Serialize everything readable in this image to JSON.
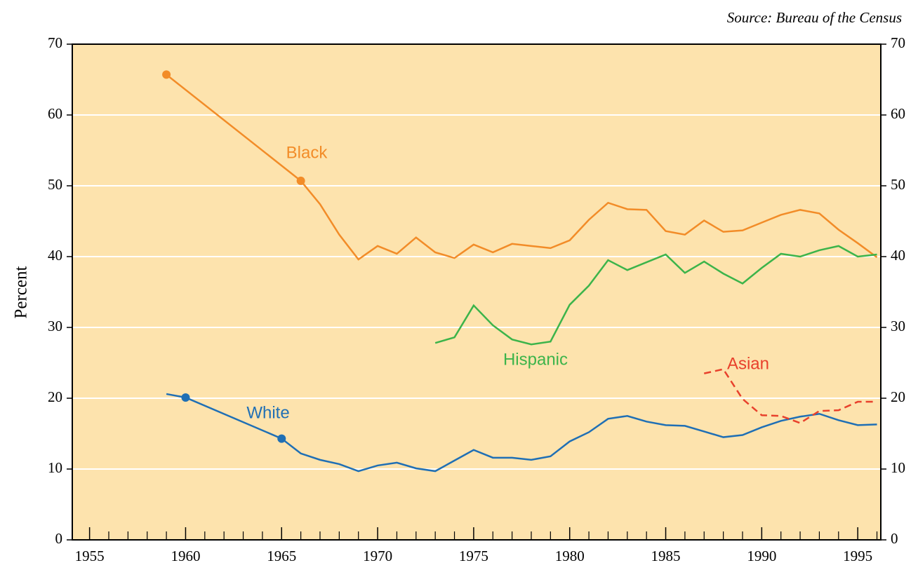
{
  "chart_data": {
    "type": "line",
    "source": "Source: Bureau of the Census",
    "ylabel": "Percent",
    "xlim": [
      1954.1,
      1996.2
    ],
    "xticks": [
      1955,
      1960,
      1965,
      1970,
      1975,
      1980,
      1985,
      1990,
      1995
    ],
    "ylim": [
      0,
      70
    ],
    "yticks": [
      0,
      10,
      20,
      30,
      40,
      50,
      60,
      70
    ],
    "grid": true,
    "background": "#fde3ad",
    "series": [
      {
        "name": "Black",
        "color": "#f28c28",
        "dash": false,
        "markers": [
          1959,
          1966
        ],
        "x": [
          1959,
          1966,
          1967,
          1968,
          1969,
          1970,
          1971,
          1972,
          1973,
          1974,
          1975,
          1976,
          1977,
          1978,
          1979,
          1980,
          1981,
          1982,
          1983,
          1984,
          1985,
          1986,
          1987,
          1988,
          1989,
          1990,
          1991,
          1992,
          1993,
          1994,
          1995,
          1996
        ],
        "values": [
          65.7,
          50.7,
          47.4,
          43.1,
          39.6,
          41.5,
          40.4,
          42.7,
          40.6,
          39.8,
          41.7,
          40.6,
          41.8,
          41.5,
          41.2,
          42.3,
          45.2,
          47.6,
          46.7,
          46.6,
          43.6,
          43.1,
          45.1,
          43.5,
          43.7,
          44.8,
          45.9,
          46.6,
          46.1,
          43.8,
          41.9,
          39.9
        ]
      },
      {
        "name": "Hispanic",
        "color": "#3cb44a",
        "dash": false,
        "markers": [],
        "x": [
          1973,
          1974,
          1975,
          1976,
          1977,
          1978,
          1979,
          1980,
          1981,
          1982,
          1983,
          1984,
          1985,
          1986,
          1987,
          1988,
          1989,
          1990,
          1991,
          1992,
          1993,
          1994,
          1995,
          1996
        ],
        "values": [
          27.8,
          28.6,
          33.1,
          30.3,
          28.3,
          27.6,
          28.0,
          33.2,
          35.9,
          39.5,
          38.1,
          39.2,
          40.3,
          37.7,
          39.3,
          37.6,
          36.2,
          38.4,
          40.4,
          40.0,
          40.9,
          41.5,
          40.0,
          40.3
        ]
      },
      {
        "name": "White",
        "color": "#1f6fb5",
        "dash": false,
        "markers": [
          1960,
          1965
        ],
        "x": [
          1959,
          1960,
          1965,
          1966,
          1967,
          1968,
          1969,
          1970,
          1971,
          1972,
          1973,
          1974,
          1975,
          1976,
          1977,
          1978,
          1979,
          1980,
          1981,
          1982,
          1983,
          1984,
          1985,
          1986,
          1987,
          1988,
          1989,
          1990,
          1991,
          1992,
          1993,
          1994,
          1995,
          1996
        ],
        "values": [
          20.6,
          20.1,
          14.3,
          12.2,
          11.3,
          10.7,
          9.7,
          10.5,
          10.9,
          10.1,
          9.7,
          11.2,
          12.7,
          11.6,
          11.6,
          11.3,
          11.8,
          13.9,
          15.2,
          17.1,
          17.5,
          16.7,
          16.2,
          16.1,
          15.3,
          14.5,
          14.8,
          15.9,
          16.8,
          17.4,
          17.8,
          16.9,
          16.2,
          16.3
        ]
      },
      {
        "name": "Asian",
        "color": "#e8412c",
        "dash": true,
        "markers": [],
        "x": [
          1987,
          1988,
          1989,
          1990,
          1991,
          1992,
          1993,
          1994,
          1995,
          1996
        ],
        "values": [
          23.5,
          24.1,
          19.9,
          17.6,
          17.5,
          16.5,
          18.2,
          18.3,
          19.5,
          19.5
        ]
      }
    ]
  }
}
